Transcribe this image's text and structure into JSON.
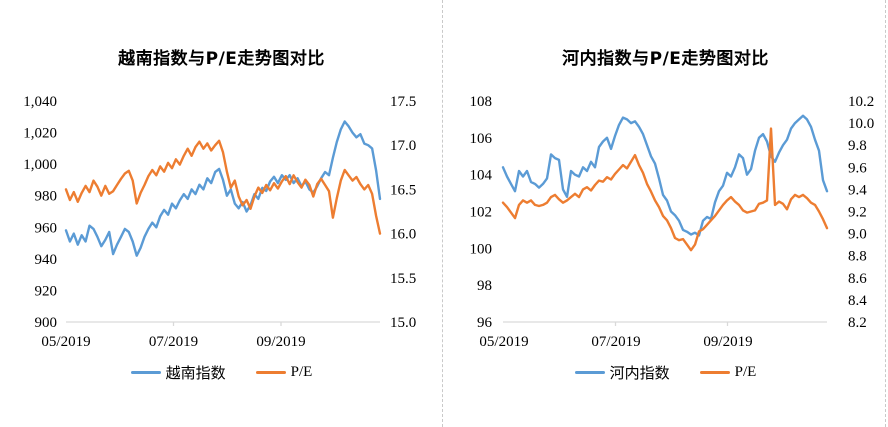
{
  "page": {
    "background": "#ffffff",
    "divider_color": "#c9c9c9",
    "axis_line_color": "#d9d9d9",
    "text_color": "#000000"
  },
  "chart_data": [
    {
      "type": "line",
      "title": "越南指数与P/E走势图对比",
      "grid": false,
      "legend_position": "bottom",
      "x_tick_labels": [
        "05/2019",
        "07/2019",
        "09/2019"
      ],
      "left_axis": {
        "min": 900,
        "max": 1040,
        "tick_labels": [
          "1,040",
          "1,020",
          "1,000",
          "980",
          "960",
          "940",
          "920",
          "900"
        ]
      },
      "right_axis": {
        "min": 15.0,
        "max": 17.5,
        "tick_labels": [
          "17.5",
          "17.0",
          "16.5",
          "16.0",
          "15.5",
          "15.0"
        ]
      },
      "series": [
        {
          "name": "越南指数",
          "axis": "left",
          "color": "#5B9BD5",
          "values": [
            958,
            951,
            956,
            949,
            955,
            951,
            961,
            959,
            954,
            948,
            952,
            957,
            943,
            949,
            954,
            959,
            957,
            951,
            942,
            947,
            954,
            959,
            963,
            960,
            967,
            971,
            968,
            975,
            972,
            977,
            981,
            978,
            984,
            981,
            987,
            984,
            991,
            988,
            995,
            997,
            990,
            980,
            984,
            975,
            972,
            976,
            970,
            974,
            981,
            978,
            985,
            983,
            989,
            992,
            988,
            993,
            990,
            993,
            988,
            991,
            986,
            989,
            984,
            982,
            986,
            991,
            995,
            993,
            1004,
            1014,
            1022,
            1027,
            1024,
            1020,
            1017,
            1019,
            1013,
            1012,
            1010,
            996,
            978
          ]
        },
        {
          "name": "P/E",
          "axis": "right",
          "color": "#ED7D31",
          "values": [
            16.5,
            16.38,
            16.47,
            16.36,
            16.46,
            16.54,
            16.47,
            16.6,
            16.53,
            16.43,
            16.54,
            16.45,
            16.48,
            16.55,
            16.62,
            16.68,
            16.71,
            16.6,
            16.34,
            16.46,
            16.55,
            16.65,
            16.72,
            16.66,
            16.76,
            16.7,
            16.8,
            16.74,
            16.84,
            16.78,
            16.88,
            16.96,
            16.88,
            16.98,
            17.04,
            16.96,
            17.02,
            16.94,
            17.0,
            17.05,
            16.92,
            16.7,
            16.52,
            16.6,
            16.42,
            16.32,
            16.38,
            16.28,
            16.42,
            16.52,
            16.46,
            16.55,
            16.49,
            16.57,
            16.51,
            16.59,
            16.65,
            16.56,
            16.66,
            16.58,
            16.52,
            16.61,
            16.55,
            16.42,
            16.56,
            16.62,
            16.55,
            16.48,
            16.18,
            16.4,
            16.6,
            16.72,
            16.66,
            16.6,
            16.64,
            16.56,
            16.5,
            16.55,
            16.45,
            16.2,
            16.0
          ]
        }
      ]
    },
    {
      "type": "line",
      "title": "河内指数与P/E走势图对比",
      "grid": false,
      "legend_position": "bottom",
      "x_tick_labels": [
        "05/2019",
        "07/2019",
        "09/2019"
      ],
      "left_axis": {
        "min": 96,
        "max": 108,
        "tick_labels": [
          "108",
          "106",
          "104",
          "102",
          "100",
          "98",
          "96"
        ]
      },
      "right_axis": {
        "min": 8.2,
        "max": 10.2,
        "tick_labels": [
          "10.2",
          "10.0",
          "9.8",
          "9.6",
          "9.4",
          "9.2",
          "9.0",
          "8.8",
          "8.6",
          "8.4",
          "8.2"
        ]
      },
      "series": [
        {
          "name": "河内指数",
          "axis": "left",
          "color": "#5B9BD5",
          "values": [
            104.4,
            103.9,
            103.5,
            103.1,
            104.2,
            103.9,
            104.2,
            103.6,
            103.5,
            103.3,
            103.5,
            103.8,
            105.1,
            104.9,
            104.8,
            103.2,
            102.8,
            104.2,
            104.0,
            103.9,
            104.4,
            104.2,
            104.7,
            104.4,
            105.5,
            105.8,
            106.0,
            105.4,
            106.1,
            106.7,
            107.1,
            107.0,
            106.8,
            106.9,
            106.6,
            106.2,
            105.6,
            105.0,
            104.6,
            103.8,
            102.9,
            102.6,
            102.0,
            101.8,
            101.5,
            101.0,
            100.9,
            100.75,
            100.85,
            100.7,
            101.5,
            101.7,
            101.6,
            102.5,
            103.1,
            103.4,
            104.1,
            103.9,
            104.4,
            105.1,
            104.9,
            104.0,
            104.3,
            105.3,
            106.0,
            106.2,
            105.8,
            105.0,
            104.7,
            105.2,
            105.6,
            105.9,
            106.5,
            106.8,
            107.0,
            107.2,
            107.0,
            106.6,
            105.9,
            105.3,
            103.7,
            103.1
          ]
        },
        {
          "name": "P/E",
          "axis": "right",
          "color": "#ED7D31",
          "values": [
            9.28,
            9.24,
            9.19,
            9.14,
            9.26,
            9.3,
            9.28,
            9.3,
            9.26,
            9.25,
            9.26,
            9.28,
            9.33,
            9.35,
            9.31,
            9.28,
            9.3,
            9.33,
            9.36,
            9.33,
            9.4,
            9.42,
            9.39,
            9.44,
            9.48,
            9.47,
            9.51,
            9.49,
            9.54,
            9.58,
            9.62,
            9.59,
            9.65,
            9.71,
            9.62,
            9.55,
            9.45,
            9.38,
            9.3,
            9.24,
            9.16,
            9.12,
            9.05,
            8.96,
            8.94,
            8.95,
            8.9,
            8.85,
            8.9,
            9.02,
            9.04,
            9.08,
            9.12,
            9.16,
            9.21,
            9.26,
            9.3,
            9.33,
            9.29,
            9.26,
            9.21,
            9.19,
            9.2,
            9.21,
            9.27,
            9.28,
            9.3,
            9.95,
            9.26,
            9.29,
            9.27,
            9.22,
            9.31,
            9.35,
            9.33,
            9.35,
            9.32,
            9.28,
            9.26,
            9.2,
            9.13,
            9.05
          ]
        }
      ]
    }
  ]
}
